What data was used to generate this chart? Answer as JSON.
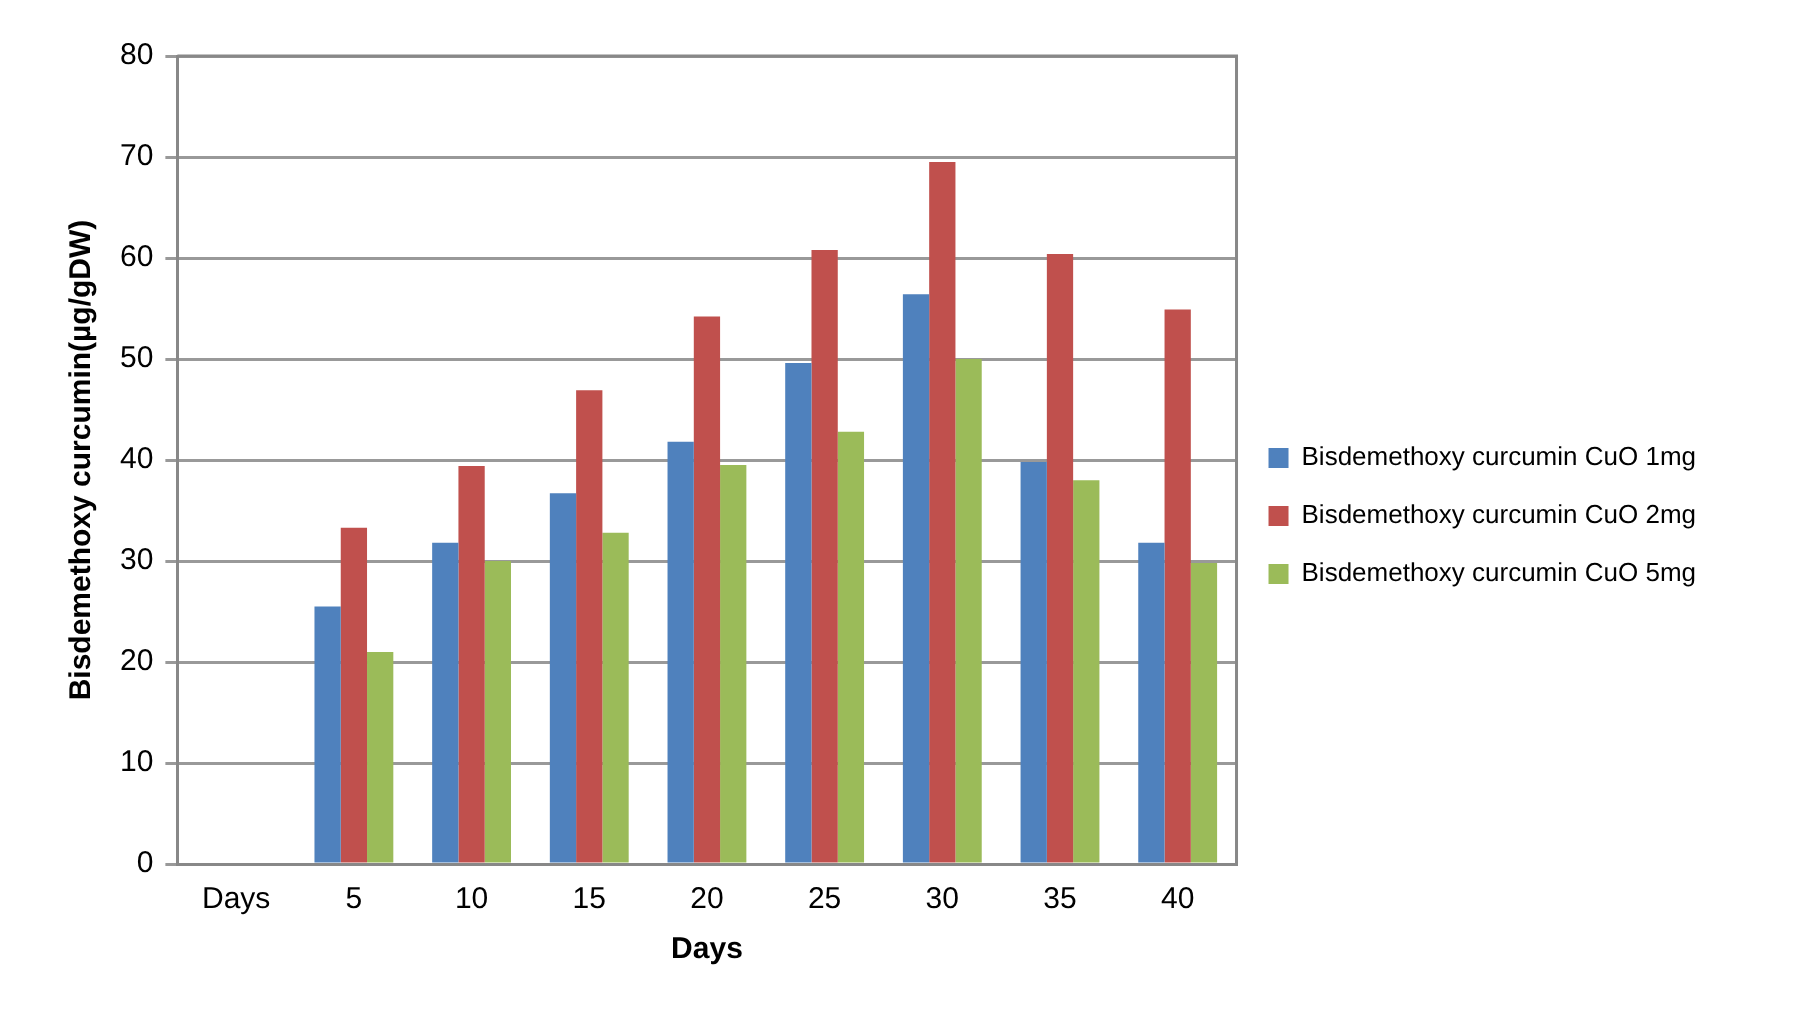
{
  "chart_data": {
    "type": "bar",
    "xlabel": "Days",
    "ylabel": "Bisdemethoxy curcumin(µg/gDW)",
    "categories": [
      "Days",
      "5",
      "10",
      "15",
      "20",
      "25",
      "30",
      "35",
      "40"
    ],
    "series": [
      {
        "name": "Bisdemethoxy curcumin CuO 1mg",
        "color": "#4f81bd",
        "values": [
          null,
          25.5,
          31.8,
          36.7,
          41.8,
          49.6,
          56.4,
          39.8,
          31.8
        ]
      },
      {
        "name": "Bisdemethoxy curcumin CuO 2mg",
        "color": "#c0504d",
        "values": [
          null,
          33.3,
          39.4,
          46.9,
          54.2,
          60.8,
          69.5,
          60.4,
          54.9
        ]
      },
      {
        "name": "Bisdemethoxy curcumin CuO 5mg",
        "color": "#9bbb59",
        "values": [
          null,
          21,
          30,
          32.8,
          39.5,
          42.8,
          50,
          38,
          29.8
        ]
      }
    ],
    "ylim": [
      0,
      80
    ],
    "yticks": [
      0,
      10,
      20,
      30,
      40,
      50,
      60,
      70,
      80
    ],
    "grid": "y",
    "legend": "right"
  }
}
